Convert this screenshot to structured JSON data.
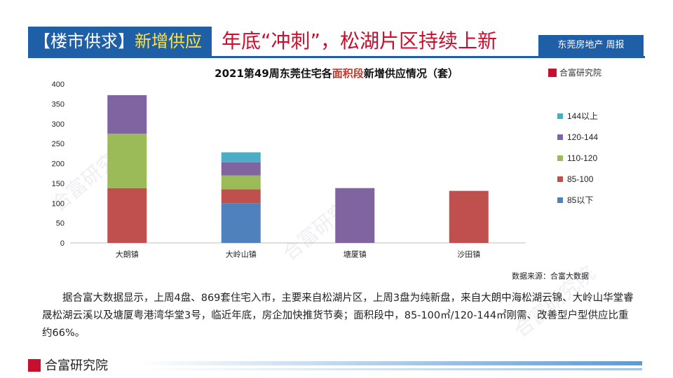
{
  "header": {
    "tag_a": "【楼市供求】",
    "tag_b": "新增供应",
    "title": "年底“冲刺”，松湖片区持续上新",
    "brand": "东莞房地产 周报"
  },
  "logo_text": "合富研究院",
  "watermark_text": "合富研究院",
  "source": "数据来源：合富大数据",
  "body_text": "据合富大数据显示，上周4盘、869套住宅入市，主要来自松湖片区，上周3盘为纯新盘，来自大朗中海松湖云锦、大岭山华堂睿晟松湖云溪以及塘厦粤港湾华堂3号，临近年底，房企加快推货节奏；面积段中，85-100㎡/120-144㎡刚需、改善型户型供应比重约66%。",
  "colors": {
    "s85": "#4f81bd",
    "s85_100": "#c0504d",
    "s110_120": "#9bbb59",
    "s120_144": "#8064a2",
    "s144": "#4bacc6",
    "brand_blue": "#1f5fa8",
    "title_red": "#c8102e"
  },
  "chart_data": {
    "type": "bar",
    "stacked": true,
    "title_pre": "2021第49周东莞住宅各",
    "title_hl": "面积段",
    "title_post": "新增供应情况（套）",
    "categories": [
      "大朗镇",
      "大岭山镇",
      "塘厦镇",
      "沙田镇"
    ],
    "ylim": [
      0,
      400
    ],
    "yticks": [
      0,
      50,
      100,
      150,
      200,
      250,
      300,
      350,
      400
    ],
    "grid": false,
    "legend_position": "right",
    "series": [
      {
        "name": "85以下",
        "color": "#4f81bd",
        "values": [
          0,
          100,
          0,
          0
        ]
      },
      {
        "name": "85-100",
        "color": "#c0504d",
        "values": [
          138,
          35,
          0,
          131
        ]
      },
      {
        "name": "110-120",
        "color": "#9bbb59",
        "values": [
          137,
          35,
          0,
          0
        ]
      },
      {
        "name": "120-144",
        "color": "#8064a2",
        "values": [
          97,
          33,
          138,
          0
        ]
      },
      {
        "name": "144以上",
        "color": "#4bacc6",
        "values": [
          0,
          25,
          0,
          0
        ]
      }
    ]
  }
}
